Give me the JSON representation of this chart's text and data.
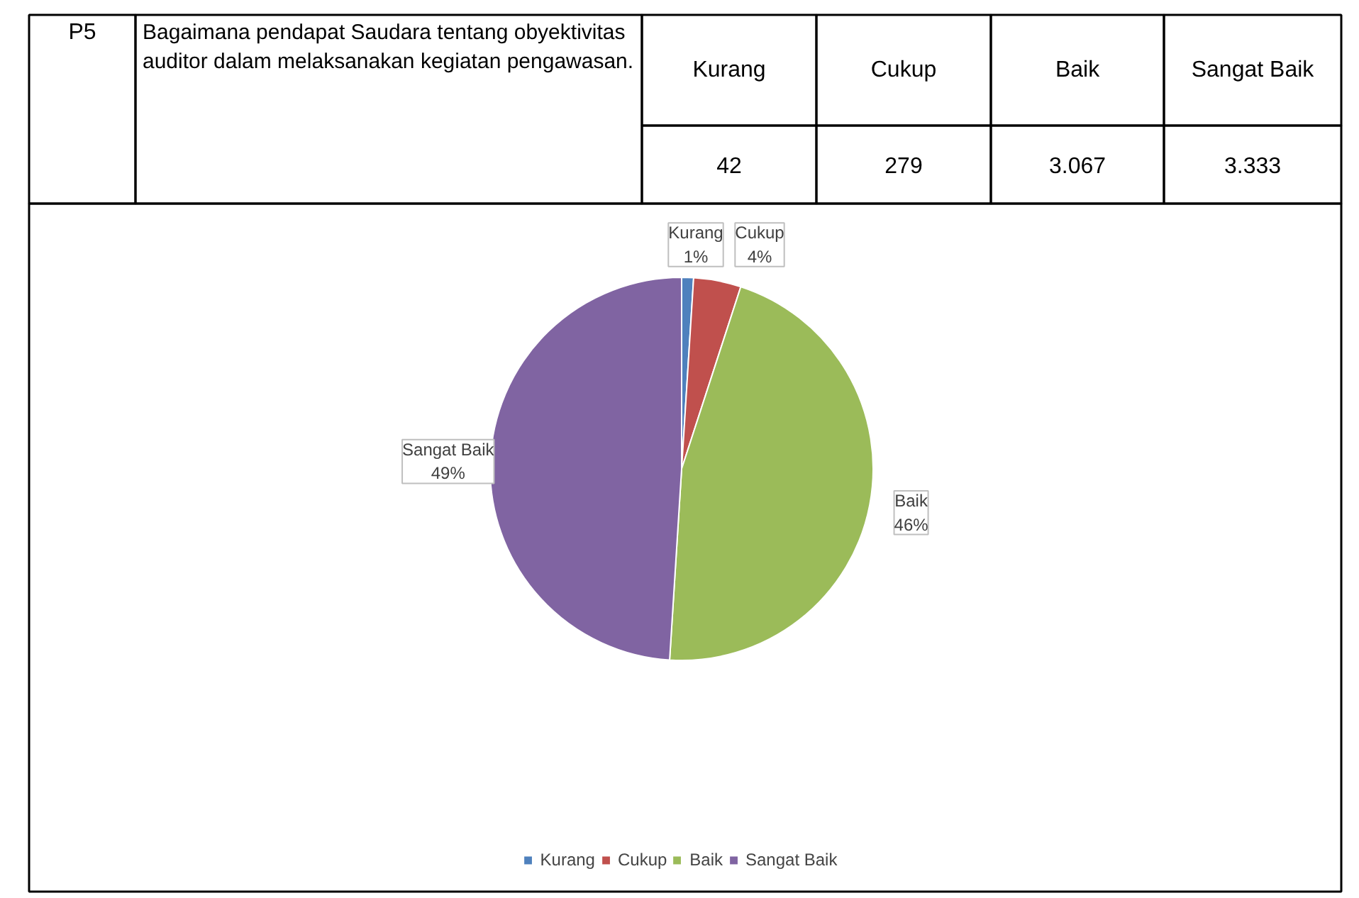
{
  "chart_data": {
    "type": "pie",
    "categories": [
      "Kurang",
      "Cukup",
      "Baik",
      "Sangat Baik"
    ],
    "values": [
      1,
      4,
      46,
      49
    ],
    "colors": [
      "#4f81bd",
      "#c0504d",
      "#9bbb59",
      "#8064a2"
    ],
    "value_labels": [
      "1%",
      "4%",
      "46%",
      "49%"
    ],
    "legend": "bottom",
    "annotations": [
      "P5",
      "Bagaimana pendapat Saudara tentang obyektivitas auditor dalam melaksanakan kegiatan pengawasan.",
      "42",
      "279",
      "3.067",
      "3.333"
    ]
  }
}
